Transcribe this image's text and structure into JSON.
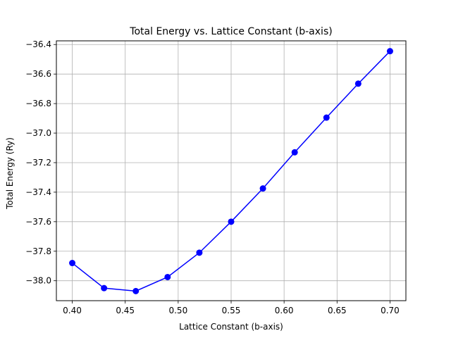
{
  "chart_data": {
    "type": "line",
    "title": "Total Energy vs. Lattice Constant (b-axis)",
    "xlabel": "Lattice Constant (b-axis)",
    "ylabel": "Total Energy (Ry)",
    "xlim": [
      0.385,
      0.715
    ],
    "ylim": [
      -38.135,
      -36.375
    ],
    "x_ticks": [
      0.4,
      0.45,
      0.5,
      0.55,
      0.6,
      0.65,
      0.7
    ],
    "x_tick_labels": [
      "0.40",
      "0.45",
      "0.50",
      "0.55",
      "0.60",
      "0.65",
      "0.70"
    ],
    "y_ticks": [
      -38.0,
      -37.8,
      -37.6,
      -37.4,
      -37.2,
      -37.0,
      -36.8,
      -36.6,
      -36.4
    ],
    "y_tick_labels": [
      "−38.0",
      "−37.8",
      "−37.6",
      "−37.4",
      "−37.2",
      "−37.0",
      "−36.8",
      "−36.6",
      "−36.4"
    ],
    "grid": true,
    "series": [
      {
        "color": "#0000ff",
        "marker": "circle",
        "x": [
          0.4,
          0.43,
          0.46,
          0.49,
          0.52,
          0.55,
          0.58,
          0.61,
          0.64,
          0.67,
          0.7
        ],
        "y": [
          -37.88,
          -38.05,
          -38.07,
          -37.975,
          -37.81,
          -37.6,
          -37.375,
          -37.13,
          -36.895,
          -36.665,
          -36.445
        ]
      }
    ]
  }
}
